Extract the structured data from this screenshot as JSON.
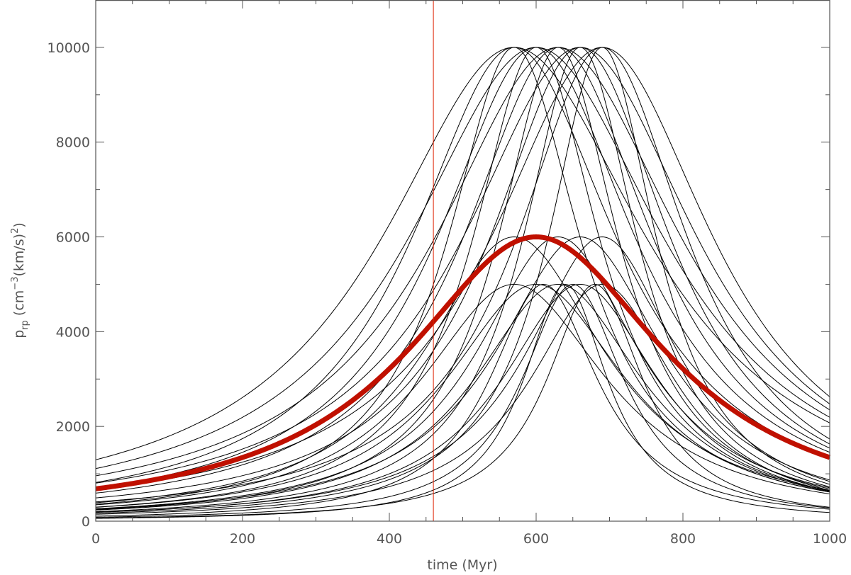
{
  "chart_data": {
    "type": "line",
    "title": "",
    "xlabel": "time (Myr)",
    "ylabel_parts": {
      "p": "p",
      "rp": "rp",
      "open": " (cm",
      "exp1": "−3",
      "mid": "(km/s)",
      "exp2": "2",
      "close": ")"
    },
    "xlim": [
      0,
      1000
    ],
    "ylim": [
      0,
      11000
    ],
    "x_ticks": [
      0,
      200,
      400,
      600,
      800,
      1000
    ],
    "y_ticks": [
      0,
      2000,
      4000,
      6000,
      8000,
      10000
    ],
    "x_tick_labels": [
      "0",
      "200",
      "400",
      "600",
      "800",
      "1000"
    ],
    "y_tick_labels": [
      "0",
      "2000",
      "4000",
      "6000",
      "8000",
      "10000"
    ],
    "line_color": "#000000",
    "highlight_color": "#c01000",
    "marker_color": "#e02000",
    "vertical_marker_x": 460,
    "profile": "lorentzian: y = peak / (1 + ((t - t_peak)/width)^2)",
    "highlight_series": {
      "name": "highlighted",
      "peak": 6000,
      "t_peak": 600,
      "width": 215
    },
    "series": [
      {
        "name": "s1",
        "peak": 10000,
        "t_peak": 570,
        "width": 220
      },
      {
        "name": "s2",
        "peak": 10000,
        "t_peak": 600,
        "width": 212
      },
      {
        "name": "s3",
        "peak": 10000,
        "t_peak": 630,
        "width": 205
      },
      {
        "name": "s4",
        "peak": 10000,
        "t_peak": 660,
        "width": 195
      },
      {
        "name": "s5",
        "peak": 10000,
        "t_peak": 690,
        "width": 185
      },
      {
        "name": "s6",
        "peak": 10000,
        "t_peak": 570,
        "width": 170
      },
      {
        "name": "s7",
        "peak": 10000,
        "t_peak": 600,
        "width": 165
      },
      {
        "name": "s8",
        "peak": 10000,
        "t_peak": 630,
        "width": 158
      },
      {
        "name": "s9",
        "peak": 10000,
        "t_peak": 660,
        "width": 150
      },
      {
        "name": "s10",
        "peak": 10000,
        "t_peak": 690,
        "width": 142
      },
      {
        "name": "s11",
        "peak": 10000,
        "t_peak": 570,
        "width": 110
      },
      {
        "name": "s12",
        "peak": 10000,
        "t_peak": 600,
        "width": 105
      },
      {
        "name": "s13",
        "peak": 10000,
        "t_peak": 630,
        "width": 100
      },
      {
        "name": "s14",
        "peak": 10000,
        "t_peak": 660,
        "width": 95
      },
      {
        "name": "s15",
        "peak": 10000,
        "t_peak": 690,
        "width": 90
      },
      {
        "name": "s16",
        "peak": 6000,
        "t_peak": 570,
        "width": 150
      },
      {
        "name": "s17",
        "peak": 6000,
        "t_peak": 630,
        "width": 135
      },
      {
        "name": "s18",
        "peak": 6000,
        "t_peak": 660,
        "width": 140
      },
      {
        "name": "s19",
        "peak": 6000,
        "t_peak": 690,
        "width": 125
      },
      {
        "name": "s20",
        "peak": 5000,
        "t_peak": 570,
        "width": 155
      },
      {
        "name": "s21",
        "peak": 5000,
        "t_peak": 600,
        "width": 150
      },
      {
        "name": "s22",
        "peak": 5000,
        "t_peak": 630,
        "width": 140
      },
      {
        "name": "s23",
        "peak": 5000,
        "t_peak": 660,
        "width": 130
      },
      {
        "name": "s24",
        "peak": 5000,
        "t_peak": 690,
        "width": 120
      },
      {
        "name": "s25",
        "peak": 5000,
        "t_peak": 610,
        "width": 90
      },
      {
        "name": "s26",
        "peak": 5000,
        "t_peak": 650,
        "width": 85
      },
      {
        "name": "s27",
        "peak": 5000,
        "t_peak": 680,
        "width": 80
      },
      {
        "name": "s28",
        "peak": 5000,
        "t_peak": 640,
        "width": 70
      }
    ]
  }
}
